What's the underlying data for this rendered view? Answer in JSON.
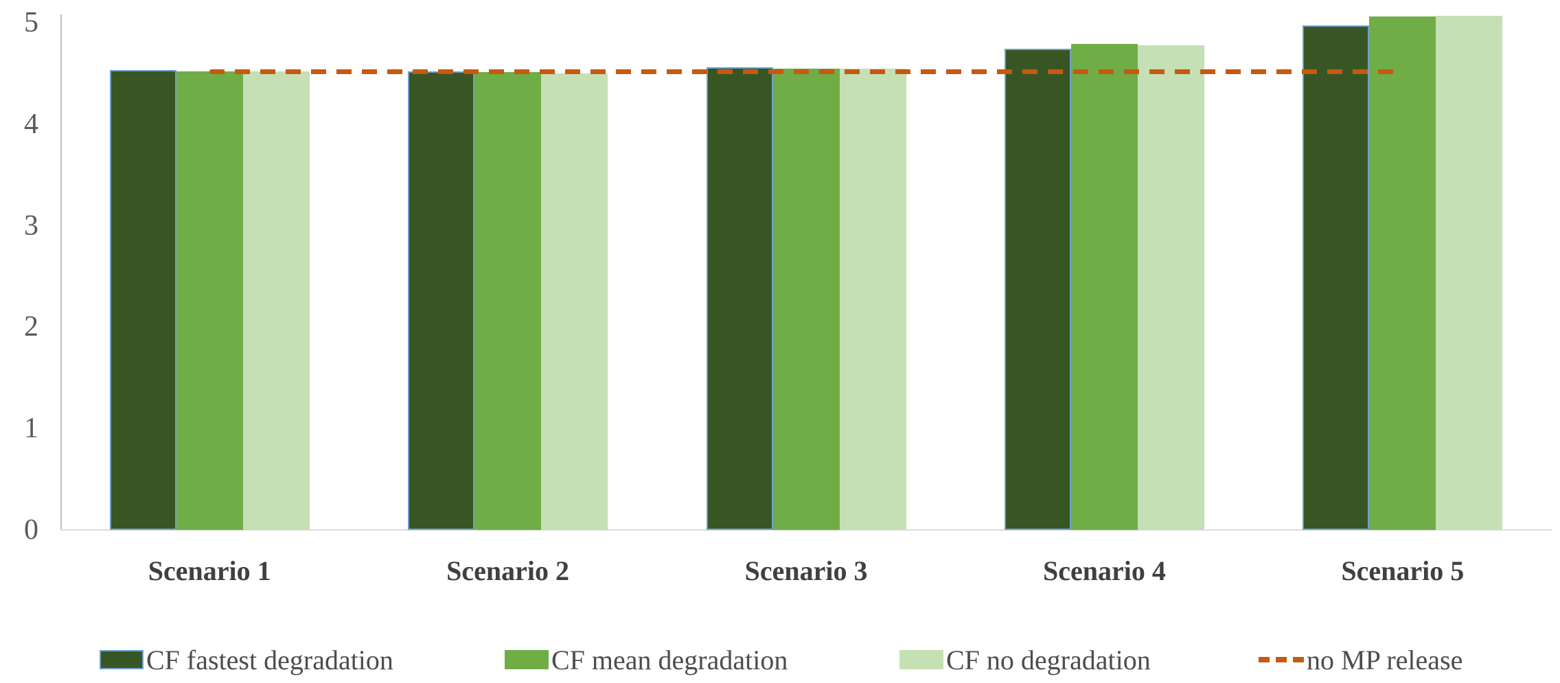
{
  "chart_data": {
    "type": "bar",
    "title": "",
    "xlabel": "",
    "ylabel": "",
    "categories": [
      "Scenario 1",
      "Scenario 2",
      "Scenario 3",
      "Scenario 4",
      "Scenario 5"
    ],
    "series": [
      {
        "name": "CF fastest degradation",
        "color": "#375623",
        "outline_color": "#6f9fd0",
        "values": [
          4.53,
          4.52,
          4.56,
          4.74,
          4.97
        ]
      },
      {
        "name": "CF mean degradation",
        "color": "#70ad47",
        "values": [
          4.52,
          4.51,
          4.55,
          4.79,
          5.06
        ]
      },
      {
        "name": "CF no degradation",
        "color": "#c5e0b4",
        "values": [
          4.52,
          4.5,
          4.55,
          4.78,
          5.07
        ]
      }
    ],
    "ref_line": {
      "name": "no MP release",
      "value": 4.52,
      "color": "#c55a11",
      "style": "dashed",
      "span_categories": [
        "Scenario 1",
        "Scenario 5"
      ]
    },
    "y_ticks": [
      0,
      1,
      2,
      3,
      4,
      5
    ],
    "ylim": [
      0,
      5
    ],
    "grid": false,
    "legend_position": "bottom",
    "colors": {
      "axis_line": "#bfbfbf",
      "baseline": "#dcdcdc",
      "tick_text": "#595959",
      "category_text": "#404040",
      "legend_text": "#4d4d4d",
      "background": "#ffffff"
    }
  }
}
